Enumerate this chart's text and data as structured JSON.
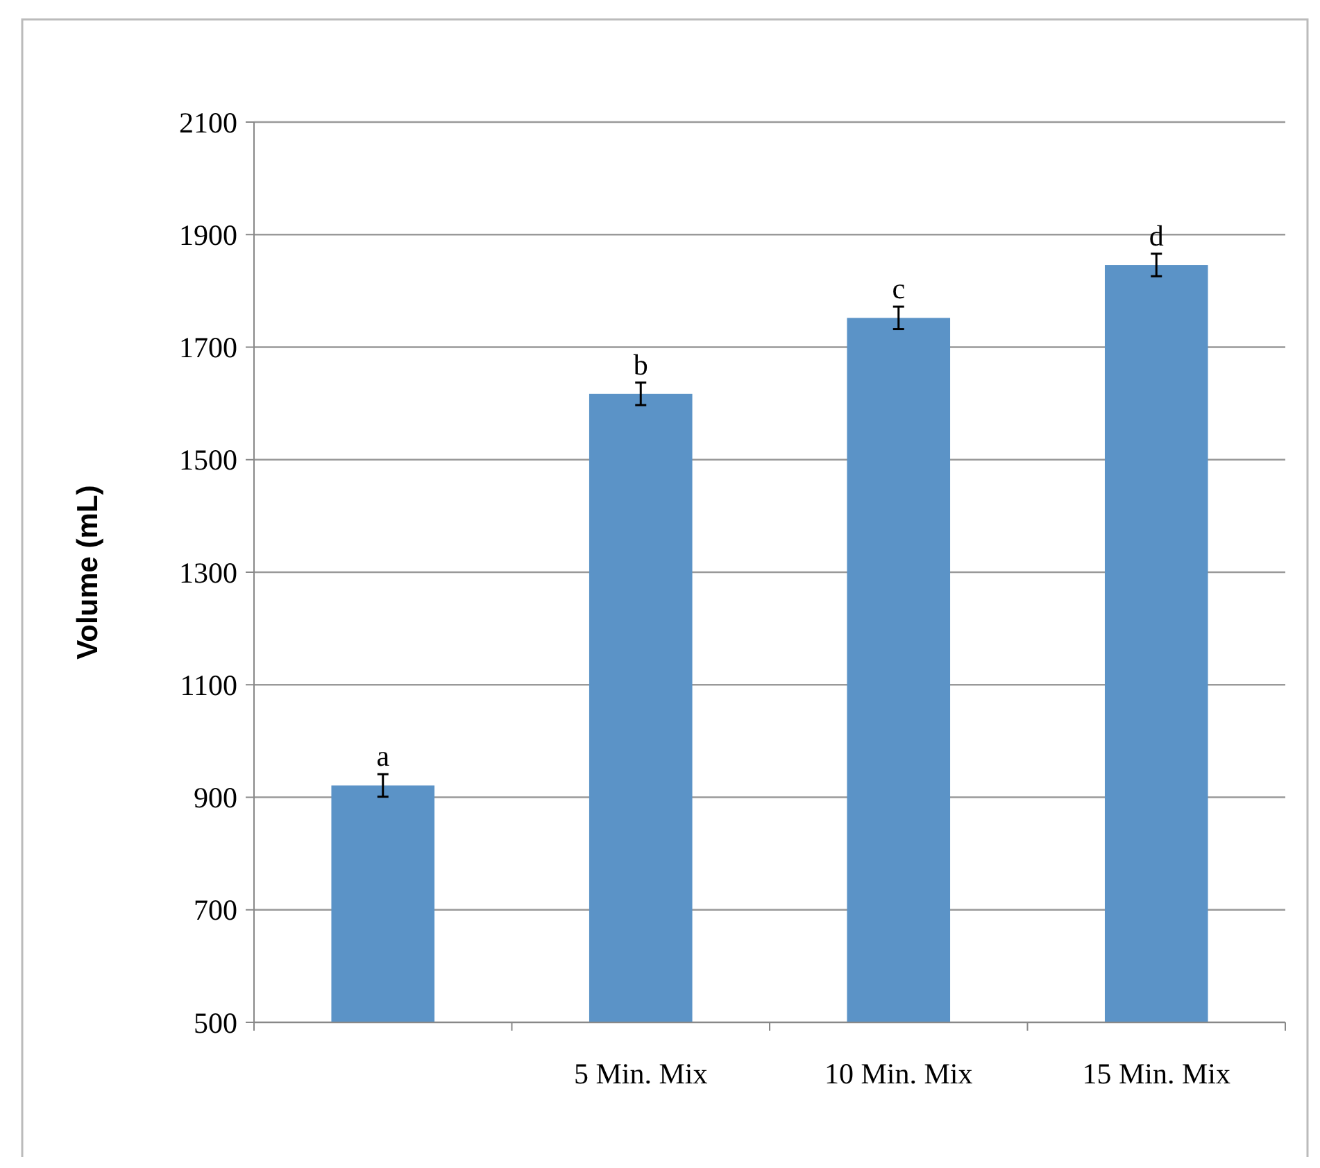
{
  "chart_data": {
    "type": "bar",
    "ylabel": "Volume (mL)",
    "categories": [
      null,
      "5 Min. Mix",
      "10 Min. Mix",
      "15 Min. Mix"
    ],
    "values": [
      921,
      1617,
      1752,
      1846
    ],
    "errors": [
      20,
      20,
      20,
      20
    ],
    "value_labels": [
      "a",
      "b",
      "c",
      "d"
    ],
    "color": "#5b93c7",
    "ylim": [
      500,
      2100
    ],
    "yticks": [
      500,
      700,
      900,
      1100,
      1300,
      1500,
      1700,
      1900,
      2100
    ],
    "grid": "y"
  }
}
